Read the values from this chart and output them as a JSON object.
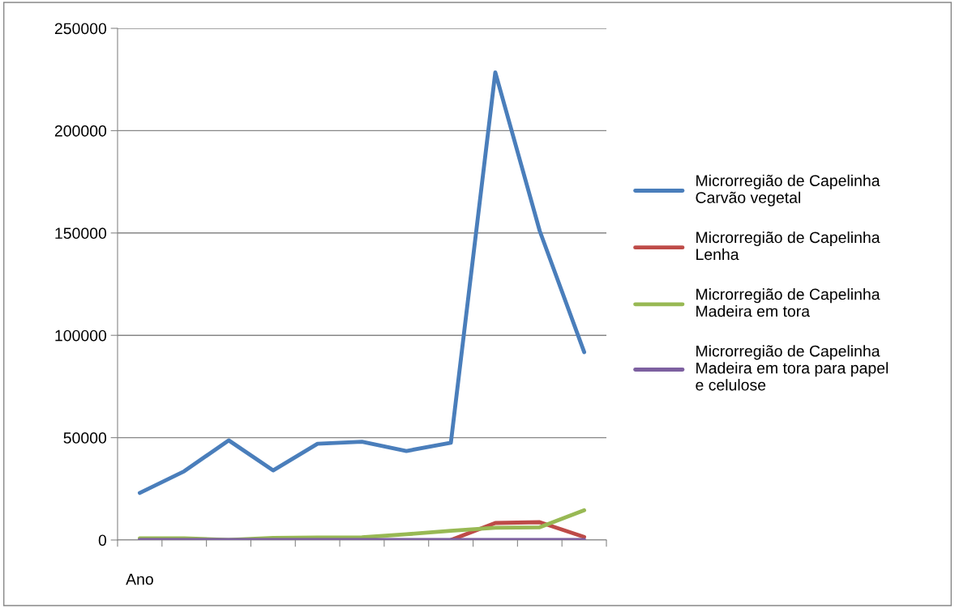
{
  "chart_data": {
    "type": "line",
    "categories": [
      "Ano",
      null,
      null,
      null,
      null,
      null,
      null,
      null,
      null,
      null,
      null
    ],
    "series": [
      {
        "name": "Microrregião de Capelinha\nCarvão vegetal",
        "color": "#4a7ebb",
        "values": [
          23000,
          33600,
          48700,
          34000,
          47000,
          48000,
          43500,
          47500,
          228500,
          151000,
          91800
        ]
      },
      {
        "name": "Microrregião de Capelinha\nLenha",
        "color": "#be4b48",
        "values": [
          null,
          null,
          null,
          null,
          null,
          null,
          null,
          0,
          8300,
          8700,
          1500
        ]
      },
      {
        "name": "Microrregião de Capelinha\nMadeira em tora",
        "color": "#98b954",
        "values": [
          800,
          800,
          0,
          1000,
          1200,
          1300,
          2800,
          4500,
          6000,
          6200,
          14500
        ]
      },
      {
        "name": "Microrregião de Capelinha\nMadeira em tora para papel\ne celulose",
        "color": "#7d60a0",
        "values": [
          0,
          0,
          0,
          0,
          0,
          0,
          0,
          0,
          0,
          0,
          0
        ]
      }
    ],
    "ylim": [
      0,
      250000
    ],
    "yticks": [
      0,
      50000,
      100000,
      150000,
      200000,
      250000
    ],
    "grid": "y",
    "legend": "right",
    "marker": "none",
    "line_style": "solid"
  }
}
